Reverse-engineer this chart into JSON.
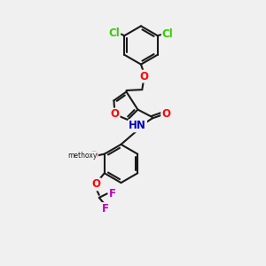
{
  "bg_color": "#f0f0f0",
  "bond_color": "#1a1a1a",
  "bond_width": 1.5,
  "atom_colors": {
    "O": "#ff0000",
    "N": "#0000bb",
    "Cl": "#33cc00",
    "F": "#bb00bb",
    "H": "#888888",
    "C": "#1a1a1a"
  },
  "font_size": 8.5,
  "figsize": [
    3.0,
    3.0
  ],
  "dpi": 100
}
